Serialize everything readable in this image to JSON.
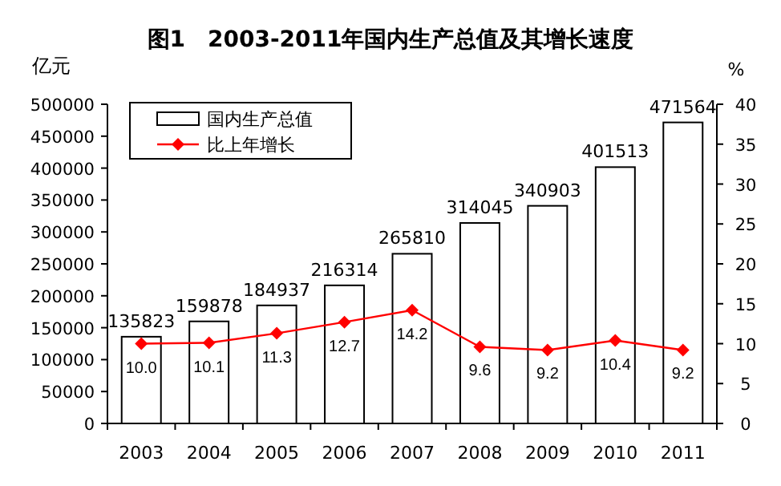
{
  "chart_data": {
    "type": "bar",
    "title": "图1　2003-2011年国内生产总值及其增长速度",
    "ylabel": "亿元",
    "y2label": "%",
    "categories": [
      "2003",
      "2004",
      "2005",
      "2006",
      "2007",
      "2008",
      "2009",
      "2010",
      "2011"
    ],
    "series": [
      {
        "name": "国内生产总值",
        "color": "#ffffff",
        "values": [
          135823,
          159878,
          184937,
          216314,
          265810,
          314045,
          340903,
          401513,
          471564
        ],
        "value_labels": [
          "135823",
          "159878",
          "184937",
          "216314",
          "265810",
          "314045",
          "340903",
          "401513",
          "471564"
        ]
      },
      {
        "name": "比上年增长",
        "type": "line",
        "axis": "y2",
        "color": "#ff0000",
        "marker": "diamond",
        "values": [
          10.0,
          10.1,
          11.3,
          12.7,
          14.2,
          9.6,
          9.2,
          10.4,
          9.2
        ],
        "value_labels": [
          "10.0",
          "10.1",
          "11.3",
          "12.7",
          "14.2",
          "9.6",
          "9.2",
          "10.4",
          "9.2"
        ]
      }
    ],
    "ylim": [
      0,
      500000
    ],
    "yticks": [
      0,
      50000,
      100000,
      150000,
      200000,
      250000,
      300000,
      350000,
      400000,
      450000,
      500000
    ],
    "y2lim": [
      0,
      40
    ],
    "y2ticks": [
      0,
      5,
      10,
      15,
      20,
      25,
      30,
      35,
      40
    ],
    "grid": false,
    "legend": "top left"
  }
}
